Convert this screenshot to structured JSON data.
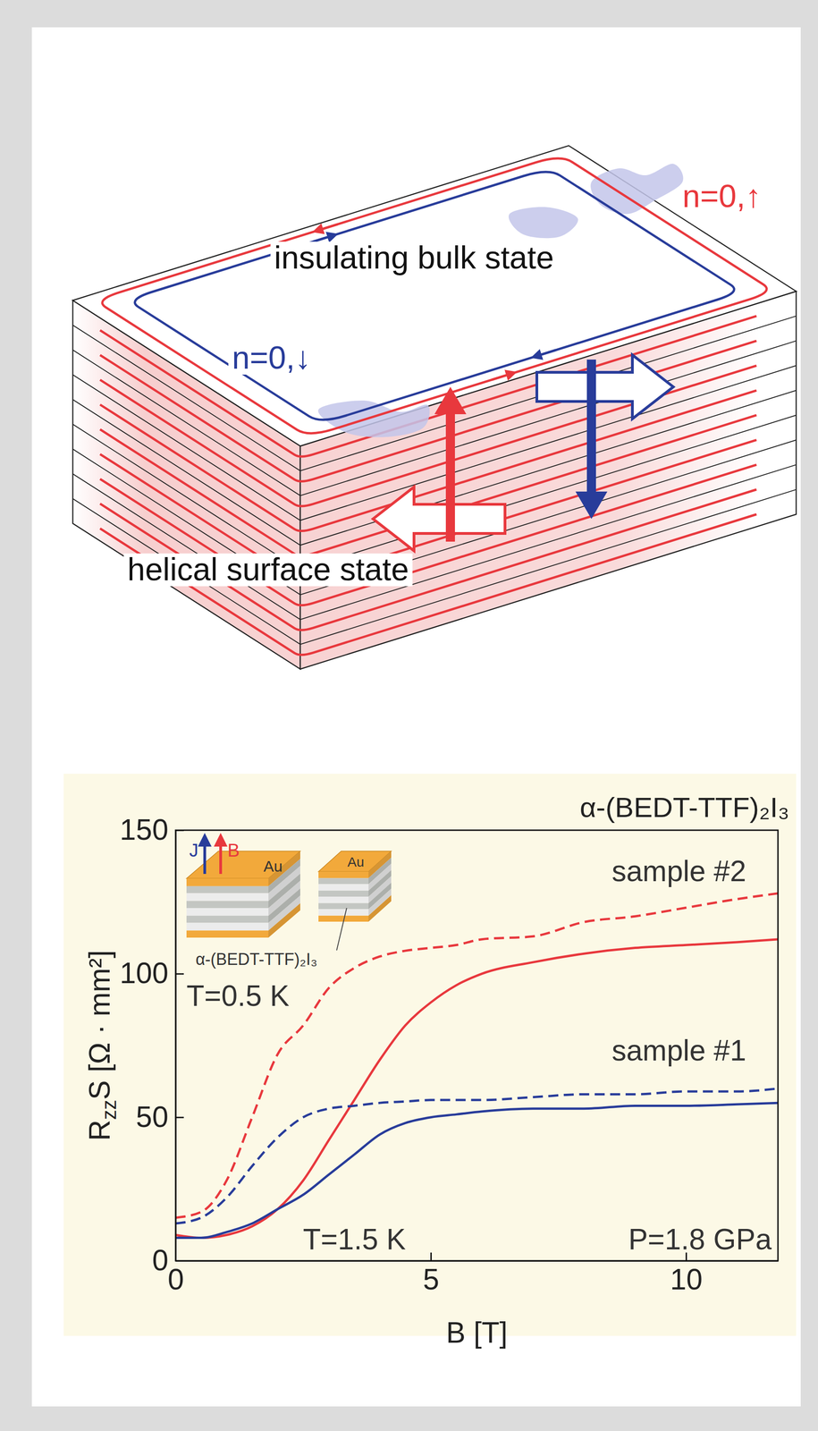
{
  "diagram": {
    "bulk_label": "insulating bulk state",
    "surface_label": "helical surface state",
    "up_edge_label": "n=0,↑",
    "down_edge_label": "n=0,↓"
  },
  "chart_data": {
    "type": "line",
    "title": "α-(BEDT-TTF)₂I₃",
    "x_label": "B [T]",
    "y_label": "RzzS [Ω · mm²]",
    "x": [
      0,
      0.5,
      1,
      1.5,
      2,
      2.5,
      3,
      3.5,
      4,
      4.5,
      5,
      5.5,
      6,
      7,
      8,
      9,
      10,
      11,
      11.8
    ],
    "series": [
      {
        "color": "#e8383d",
        "line_style": "dashed",
        "values": [
          15,
          17,
          28,
          50,
          72,
          82,
          95,
          102,
          106,
          108,
          109,
          110,
          112,
          113,
          118,
          120,
          123,
          126,
          128
        ]
      },
      {
        "color": "#e8383d",
        "line_style": "solid",
        "values": [
          9,
          8,
          9,
          12,
          18,
          28,
          42,
          56,
          70,
          82,
          90,
          96,
          100,
          104,
          107,
          109,
          110,
          111,
          112
        ]
      },
      {
        "color": "#283c9a",
        "line_style": "dashed",
        "values": [
          13,
          15,
          22,
          33,
          43,
          50,
          53,
          54,
          55,
          55.5,
          56,
          56,
          56,
          57,
          58,
          58,
          59,
          59,
          60
        ]
      },
      {
        "color": "#283c9a",
        "line_style": "solid",
        "values": [
          8,
          8,
          10,
          13,
          18,
          23,
          30,
          37,
          44,
          48,
          50,
          51,
          52,
          53,
          53,
          54,
          54,
          54.5,
          55
        ]
      }
    ],
    "xlim": [
      0,
      11.8
    ],
    "ylim": [
      0,
      150
    ],
    "xticks": [
      0,
      5,
      10
    ],
    "yticks": [
      0,
      50,
      100,
      150
    ],
    "grid": false,
    "annotations": [
      "sample #2",
      "sample #1",
      "T=0.5 K",
      "T=1.5 K",
      "P=1.8 GPa",
      "J",
      "B",
      "Au",
      "Au",
      "α-(BEDT-TTF)₂I₃"
    ]
  }
}
